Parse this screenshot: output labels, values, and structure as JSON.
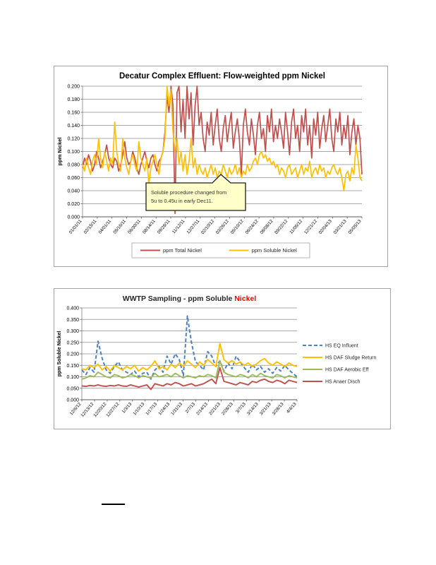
{
  "page": {
    "background": "#ffffff"
  },
  "chart_data": [
    {
      "type": "line",
      "title": "Decatur Complex Effluent:  Flow-weighted ppm Nickel",
      "title_color": "#000000",
      "ylabel": "ppm Nickel",
      "xlabel": "",
      "ylim": [
        0,
        0.2
      ],
      "grid": true,
      "legend_position": "bottom",
      "y_ticks": [
        "0.200",
        "0.180",
        "0.160",
        "0.140",
        "0.120",
        "0.100",
        "0.080",
        "0.060",
        "0.040",
        "0.020",
        "0.000"
      ],
      "x_labels": [
        "01/01/11",
        "02/15/11",
        "04/01/11",
        "05/16/11",
        "06/30/11",
        "08/14/11",
        "09/28/11",
        "11/12/11",
        "12/27/11",
        "02/10/12",
        "03/26/12",
        "05/10/12",
        "06/24/12",
        "08/08/12",
        "09/22/12",
        "11/06/12",
        "12/21/12",
        "02/04/13",
        "03/21/13",
        "05/05/13"
      ],
      "annotation": {
        "line1": "Soluble procedure changed from",
        "line2": "5u to 0.45u in early Dec11.",
        "bg": "#FFFFC9",
        "border": "#1a1a1a"
      },
      "series": [
        {
          "name": "ppm Total Nickel",
          "color": "#C0504D",
          "dash": null,
          "width": 1.7,
          "values": [
            0.075,
            0.09,
            0.08,
            0.095,
            0.085,
            0.07,
            0.08,
            0.1,
            0.09,
            0.075,
            0.085,
            0.095,
            0.11,
            0.09,
            0.08,
            0.075,
            0.09,
            0.085,
            0.07,
            0.08,
            0.095,
            0.115,
            0.09,
            0.08,
            0.085,
            0.1,
            0.09,
            0.075,
            0.065,
            0.08,
            0.09,
            0.1,
            0.085,
            0.075,
            0.09,
            0.095,
            0.08,
            0.07,
            0.085,
            0.09,
            0.1,
            0.13,
            0.185,
            0.16,
            0.2,
            0.17,
            0.005,
            0.19,
            0.2,
            0.13,
            0.18,
            0.12,
            0.2,
            0.15,
            0.19,
            0.11,
            0.17,
            0.2,
            0.14,
            0.16,
            0.12,
            0.1,
            0.145,
            0.125,
            0.16,
            0.11,
            0.14,
            0.165,
            0.12,
            0.1,
            0.135,
            0.155,
            0.115,
            0.14,
            0.16,
            0.105,
            0.13,
            0.15,
            0.12,
            0.065,
            0.14,
            0.165,
            0.13,
            0.11,
            0.15,
            0.125,
            0.095,
            0.14,
            0.16,
            0.12,
            0.135,
            0.1,
            0.155,
            0.13,
            0.165,
            0.115,
            0.14,
            0.12,
            0.15,
            0.13,
            0.105,
            0.16,
            0.13,
            0.095,
            0.145,
            0.165,
            0.12,
            0.14,
            0.1,
            0.155,
            0.13,
            0.165,
            0.11,
            0.14,
            0.09,
            0.15,
            0.125,
            0.16,
            0.105,
            0.135,
            0.155,
            0.115,
            0.14,
            0.165,
            0.12,
            0.1,
            0.15,
            0.13,
            0.16,
            0.11,
            0.14,
            0.12,
            0.155,
            0.095,
            0.13,
            0.15,
            0.11,
            0.14,
            0.12,
            0.065
          ]
        },
        {
          "name": "ppm Soluble Nickel",
          "color": "#FFC000",
          "dash": null,
          "width": 1.7,
          "values": [
            0.08,
            0.07,
            0.09,
            0.075,
            0.065,
            0.085,
            0.095,
            0.08,
            0.12,
            0.09,
            0.075,
            0.1,
            0.085,
            0.07,
            0.09,
            0.08,
            0.145,
            0.1,
            0.08,
            0.07,
            0.12,
            0.09,
            0.075,
            0.065,
            0.085,
            0.095,
            0.08,
            0.07,
            0.115,
            0.09,
            0.08,
            0.07,
            0.09,
            0.05,
            0.075,
            0.085,
            0.095,
            0.08,
            0.065,
            0.09,
            0.1,
            0.12,
            0.2,
            0.17,
            0.195,
            0.13,
            0.1,
            0.12,
            0.08,
            0.1,
            0.07,
            0.095,
            0.065,
            0.085,
            0.12,
            0.075,
            0.09,
            0.065,
            0.08,
            0.07,
            0.065,
            0.075,
            0.06,
            0.07,
            0.08,
            0.065,
            0.075,
            0.06,
            0.07,
            0.065,
            0.08,
            0.07,
            0.06,
            0.075,
            0.065,
            0.07,
            0.08,
            0.065,
            0.075,
            0.06,
            0.07,
            0.065,
            0.08,
            0.07,
            0.075,
            0.085,
            0.09,
            0.08,
            0.095,
            0.1,
            0.09,
            0.095,
            0.085,
            0.09,
            0.08,
            0.085,
            0.075,
            0.08,
            0.065,
            0.075,
            0.07,
            0.06,
            0.075,
            0.08,
            0.065,
            0.07,
            0.075,
            0.06,
            0.07,
            0.08,
            0.065,
            0.075,
            0.07,
            0.085,
            0.06,
            0.07,
            0.075,
            0.065,
            0.08,
            0.07,
            0.075,
            0.06,
            0.07,
            0.065,
            0.075,
            0.08,
            0.07,
            0.065,
            0.075,
            0.06,
            0.04,
            0.065,
            0.07,
            0.055,
            0.075,
            0.065,
            0.11,
            0.09,
            0.06,
            0.055
          ]
        }
      ]
    },
    {
      "type": "line",
      "title_main": "WWTP Sampling - ppm Soluble ",
      "title_accent": "Nickel",
      "title_color": "#262626",
      "accent_color": "#FF0000",
      "ylabel": "ppm Soluble Nickel",
      "xlabel": "",
      "ylim": [
        0,
        0.4
      ],
      "grid": true,
      "legend_position": "right",
      "y_ticks": [
        "0.400",
        "0.350",
        "0.300",
        "0.250",
        "0.200",
        "0.150",
        "0.100",
        "0.050",
        "0.000"
      ],
      "x_labels": [
        "12/6/12",
        "12/13/12",
        "12/20/12",
        "12/27/12",
        "1/3/13",
        "1/10/13",
        "1/17/13",
        "1/24/13",
        "1/31/13",
        "2/7/13",
        "2/14/13",
        "2/21/13",
        "2/28/13",
        "3/7/13",
        "3/14/13",
        "3/21/13",
        "3/28/13",
        "4/4/13"
      ],
      "series": [
        {
          "name": "HS EQ Influent",
          "color": "#4F81BD",
          "dash": "5,3",
          "width": 2,
          "values": [
            0.13,
            0.11,
            0.14,
            0.12,
            0.255,
            0.18,
            0.13,
            0.115,
            0.145,
            0.165,
            0.13,
            0.12,
            0.11,
            0.125,
            0.1,
            0.115,
            0.12,
            0.09,
            0.13,
            0.145,
            0.12,
            0.19,
            0.155,
            0.2,
            0.175,
            0.105,
            0.365,
            0.25,
            0.165,
            0.15,
            0.13,
            0.21,
            0.19,
            0.145,
            0.17,
            0.125,
            0.16,
            0.135,
            0.19,
            0.165,
            0.14,
            0.12,
            0.155,
            0.13,
            0.145,
            0.12,
            0.135,
            0.115,
            0.14,
            0.125,
            0.15,
            0.13,
            0.115,
            0.1
          ]
        },
        {
          "name": "HS DAF Sludge Return",
          "color": "#FFC000",
          "dash": null,
          "width": 1.9,
          "values": [
            0.135,
            0.13,
            0.15,
            0.14,
            0.155,
            0.13,
            0.145,
            0.125,
            0.15,
            0.14,
            0.13,
            0.145,
            0.135,
            0.15,
            0.125,
            0.14,
            0.13,
            0.145,
            0.17,
            0.135,
            0.145,
            0.13,
            0.155,
            0.14,
            0.16,
            0.145,
            0.17,
            0.155,
            0.14,
            0.165,
            0.15,
            0.175,
            0.16,
            0.145,
            0.245,
            0.175,
            0.16,
            0.17,
            0.155,
            0.165,
            0.15,
            0.16,
            0.145,
            0.155,
            0.17,
            0.18,
            0.16,
            0.15,
            0.165,
            0.155,
            0.145,
            0.16,
            0.15,
            0.145
          ]
        },
        {
          "name": "HS DAF Aerobic Eff",
          "color": "#9BBB59",
          "dash": null,
          "width": 1.9,
          "values": [
            0.09,
            0.095,
            0.105,
            0.1,
            0.12,
            0.11,
            0.1,
            0.095,
            0.11,
            0.105,
            0.095,
            0.1,
            0.11,
            0.105,
            0.095,
            0.105,
            0.1,
            0.095,
            0.115,
            0.1,
            0.105,
            0.11,
            0.1,
            0.115,
            0.105,
            0.095,
            0.105,
            0.1,
            0.095,
            0.105,
            0.1,
            0.11,
            0.105,
            0.095,
            0.17,
            0.12,
            0.11,
            0.105,
            0.1,
            0.11,
            0.105,
            0.095,
            0.11,
            0.1,
            0.115,
            0.105,
            0.1,
            0.095,
            0.11,
            0.105,
            0.095,
            0.105,
            0.1,
            0.095
          ]
        },
        {
          "name": "HS Anaer Disch",
          "color": "#C0504D",
          "dash": null,
          "width": 1.9,
          "values": [
            0.06,
            0.058,
            0.062,
            0.06,
            0.065,
            0.06,
            0.058,
            0.062,
            0.06,
            0.065,
            0.06,
            0.058,
            0.065,
            0.06,
            0.055,
            0.06,
            0.065,
            0.045,
            0.07,
            0.065,
            0.06,
            0.07,
            0.065,
            0.075,
            0.07,
            0.06,
            0.065,
            0.07,
            0.06,
            0.065,
            0.07,
            0.08,
            0.09,
            0.07,
            0.14,
            0.08,
            0.075,
            0.07,
            0.065,
            0.075,
            0.07,
            0.065,
            0.08,
            0.075,
            0.085,
            0.09,
            0.08,
            0.075,
            0.085,
            0.08,
            0.07,
            0.085,
            0.08,
            0.075
          ]
        }
      ]
    }
  ]
}
